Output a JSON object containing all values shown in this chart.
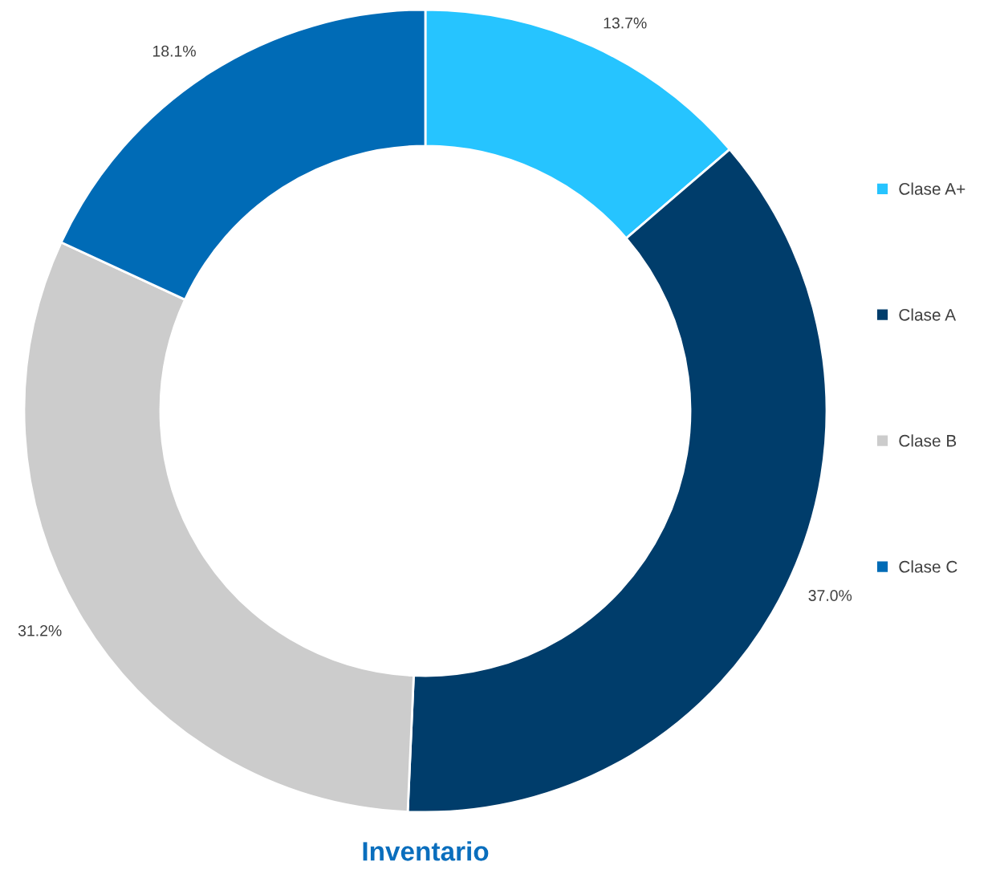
{
  "chart_data": {
    "type": "donut",
    "title": "Inventario",
    "categories": [
      "Clase A+",
      "Clase A",
      "Clase B",
      "Clase C"
    ],
    "values": [
      13.7,
      37.0,
      31.2,
      18.1
    ],
    "colors": [
      "#26c4ff",
      "#003d6b",
      "#cccccc",
      "#006bb6"
    ],
    "value_labels": [
      "13.7%",
      "37.0%",
      "31.2%",
      "18.1%"
    ],
    "legend": "right"
  }
}
